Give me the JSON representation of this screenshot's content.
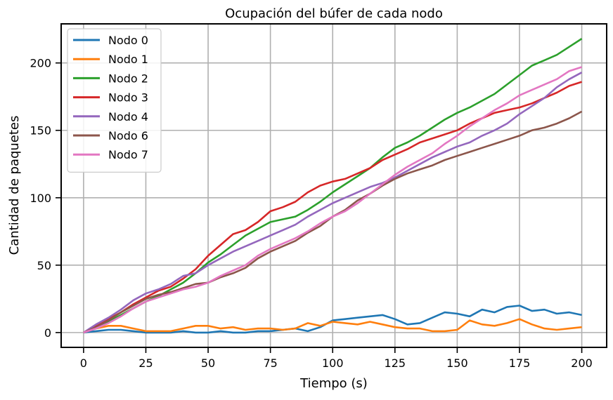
{
  "chart_data": {
    "type": "line",
    "title": "Ocupación del búfer de cada nodo",
    "xlabel": "Tiempo (s)",
    "ylabel": "Cantidad de paquetes",
    "xlim": [
      -9,
      210
    ],
    "ylim": [
      -11,
      229
    ],
    "xticks": [
      0,
      25,
      50,
      75,
      100,
      125,
      150,
      175,
      200
    ],
    "yticks": [
      0,
      50,
      100,
      150,
      200
    ],
    "grid": true,
    "legend_position": "top-left",
    "series": [
      {
        "name": "Nodo 0",
        "color": "#1f77b4",
        "x": [
          0,
          5,
          10,
          15,
          20,
          25,
          30,
          35,
          40,
          45,
          50,
          55,
          60,
          65,
          70,
          75,
          80,
          85,
          90,
          95,
          100,
          105,
          110,
          115,
          120,
          125,
          130,
          135,
          140,
          145,
          150,
          155,
          160,
          165,
          170,
          175,
          180,
          185,
          190,
          195,
          200
        ],
        "y": [
          0,
          1,
          2,
          2,
          1,
          0,
          0,
          0,
          1,
          0,
          0,
          1,
          0,
          0,
          1,
          1,
          2,
          3,
          1,
          4,
          9,
          10,
          11,
          12,
          13,
          10,
          6,
          7,
          11,
          15,
          14,
          12,
          17,
          15,
          19,
          20,
          16,
          17,
          14,
          15,
          13
        ]
      },
      {
        "name": "Nodo 1",
        "color": "#ff7f0e",
        "x": [
          0,
          5,
          10,
          15,
          20,
          25,
          30,
          35,
          40,
          45,
          50,
          55,
          60,
          65,
          70,
          75,
          80,
          85,
          90,
          95,
          100,
          105,
          110,
          115,
          120,
          125,
          130,
          135,
          140,
          145,
          150,
          155,
          160,
          165,
          170,
          175,
          180,
          185,
          190,
          195,
          200
        ],
        "y": [
          0,
          3,
          5,
          5,
          3,
          1,
          1,
          1,
          3,
          5,
          5,
          3,
          4,
          2,
          3,
          3,
          2,
          3,
          7,
          5,
          8,
          7,
          6,
          8,
          6,
          4,
          3,
          3,
          1,
          1,
          2,
          9,
          6,
          5,
          7,
          10,
          6,
          3,
          2,
          3,
          4
        ]
      },
      {
        "name": "Nodo 2",
        "color": "#2ca02c",
        "x": [
          0,
          5,
          10,
          15,
          20,
          25,
          30,
          35,
          40,
          45,
          50,
          55,
          60,
          65,
          70,
          75,
          80,
          85,
          90,
          95,
          100,
          105,
          110,
          115,
          120,
          125,
          130,
          135,
          140,
          145,
          150,
          155,
          160,
          165,
          170,
          175,
          180,
          185,
          190,
          195,
          200
        ],
        "y": [
          0,
          4,
          8,
          13,
          18,
          23,
          27,
          32,
          37,
          44,
          52,
          58,
          65,
          72,
          77,
          82,
          84,
          86,
          91,
          97,
          104,
          110,
          116,
          122,
          130,
          137,
          141,
          146,
          152,
          158,
          163,
          167,
          172,
          177,
          184,
          191,
          198,
          202,
          206,
          212,
          218
        ]
      },
      {
        "name": "Nodo 3",
        "color": "#d62728",
        "x": [
          0,
          5,
          10,
          15,
          20,
          25,
          30,
          35,
          40,
          45,
          50,
          55,
          60,
          65,
          70,
          75,
          80,
          85,
          90,
          95,
          100,
          105,
          110,
          115,
          120,
          125,
          130,
          135,
          140,
          145,
          150,
          155,
          160,
          165,
          170,
          175,
          180,
          185,
          190,
          195,
          200
        ],
        "y": [
          0,
          5,
          10,
          15,
          21,
          26,
          31,
          34,
          40,
          47,
          57,
          65,
          73,
          76,
          82,
          90,
          93,
          97,
          104,
          109,
          112,
          114,
          118,
          122,
          128,
          132,
          136,
          141,
          144,
          147,
          150,
          155,
          159,
          163,
          165,
          167,
          170,
          174,
          178,
          183,
          186
        ]
      },
      {
        "name": "Nodo 4",
        "color": "#9467bd",
        "x": [
          0,
          5,
          10,
          15,
          20,
          25,
          30,
          35,
          40,
          45,
          50,
          55,
          60,
          65,
          70,
          75,
          80,
          85,
          90,
          95,
          100,
          105,
          110,
          115,
          120,
          125,
          130,
          135,
          140,
          145,
          150,
          155,
          160,
          165,
          170,
          175,
          180,
          185,
          190,
          195,
          200
        ],
        "y": [
          0,
          6,
          11,
          17,
          24,
          29,
          32,
          36,
          42,
          44,
          50,
          55,
          60,
          64,
          68,
          72,
          76,
          80,
          86,
          91,
          96,
          100,
          104,
          108,
          111,
          115,
          120,
          125,
          130,
          134,
          138,
          141,
          146,
          150,
          155,
          162,
          168,
          174,
          182,
          188,
          193
        ]
      },
      {
        "name": "Nodo 6",
        "color": "#8c564b",
        "x": [
          0,
          5,
          10,
          15,
          20,
          25,
          30,
          35,
          40,
          45,
          50,
          55,
          60,
          65,
          70,
          75,
          80,
          85,
          90,
          95,
          100,
          105,
          110,
          115,
          120,
          125,
          130,
          135,
          140,
          145,
          150,
          155,
          160,
          165,
          170,
          175,
          180,
          185,
          190,
          195,
          200
        ],
        "y": [
          0,
          4,
          9,
          15,
          20,
          25,
          28,
          30,
          33,
          36,
          37,
          41,
          44,
          48,
          55,
          60,
          64,
          68,
          74,
          79,
          86,
          91,
          98,
          103,
          109,
          114,
          118,
          121,
          124,
          128,
          131,
          134,
          137,
          140,
          143,
          146,
          150,
          152,
          155,
          159,
          164
        ]
      },
      {
        "name": "Nodo 7",
        "color": "#e377c2",
        "x": [
          0,
          5,
          10,
          15,
          20,
          25,
          30,
          35,
          40,
          45,
          50,
          55,
          60,
          65,
          70,
          75,
          80,
          85,
          90,
          95,
          100,
          105,
          110,
          115,
          120,
          125,
          130,
          135,
          140,
          145,
          150,
          155,
          160,
          165,
          170,
          175,
          180,
          185,
          190,
          195,
          200
        ],
        "y": [
          0,
          3,
          7,
          12,
          18,
          23,
          26,
          29,
          32,
          34,
          37,
          42,
          46,
          50,
          57,
          62,
          66,
          70,
          75,
          81,
          86,
          90,
          96,
          103,
          110,
          117,
          123,
          128,
          133,
          140,
          146,
          153,
          159,
          165,
          170,
          176,
          180,
          184,
          188,
          194,
          197
        ]
      }
    ]
  }
}
